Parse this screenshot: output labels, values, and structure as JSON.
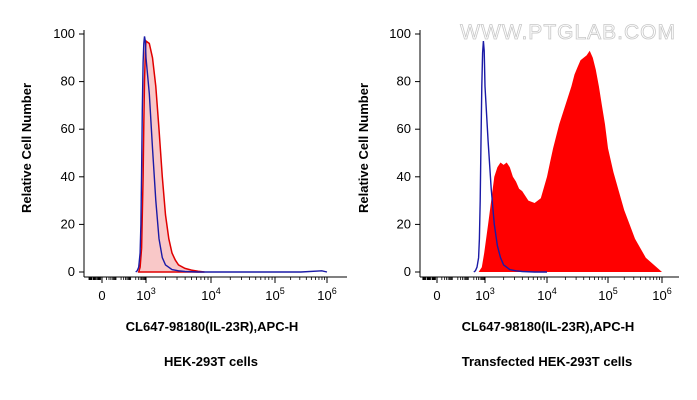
{
  "watermark": "WWW.PTGLAB.COM",
  "colors": {
    "control_line": "#1a1aa6",
    "sample_fill": "#ff0000",
    "sample_line": "#e00000",
    "faint_fill": "#f9c8c8",
    "axis": "#000000"
  },
  "chart_data": [
    {
      "type": "area",
      "title": "",
      "xlabel": "CL647-98180(IL-23R),APC-H",
      "ylabel": "Relative Cell Number",
      "caption": "HEK-293T cells",
      "xscale": "biexponential",
      "xlim": [
        -1,
        6.2
      ],
      "ylim": [
        0,
        100
      ],
      "x_ticks": [
        {
          "pos": 0,
          "base": "0",
          "exp": ""
        },
        {
          "pos": 3,
          "base": "10",
          "exp": "3"
        },
        {
          "pos": 4,
          "base": "10",
          "exp": "4"
        },
        {
          "pos": 5,
          "base": "10",
          "exp": "5"
        },
        {
          "pos": 6,
          "base": "10",
          "exp": "6"
        }
      ],
      "y_ticks": [
        0,
        20,
        40,
        60,
        80,
        100
      ],
      "grid": false,
      "series": [
        {
          "role": "sample",
          "style": "filled-light",
          "x": [
            2.5,
            2.6,
            2.7,
            2.8,
            2.85,
            2.9,
            2.95,
            3.0,
            3.05,
            3.1,
            3.15,
            3.2,
            3.25,
            3.3,
            3.35,
            3.4,
            3.45,
            3.5,
            3.6,
            3.7,
            3.8,
            3.9
          ],
          "values": [
            0,
            2,
            10,
            40,
            62,
            80,
            92,
            97,
            96,
            90,
            78,
            60,
            40,
            24,
            14,
            8,
            5,
            3,
            1.5,
            0.8,
            0.3,
            0
          ]
        },
        {
          "role": "control",
          "style": "line",
          "x": [
            2.3,
            2.4,
            2.5,
            2.6,
            2.65,
            2.7,
            2.75,
            2.8,
            2.85,
            2.9,
            2.95,
            3.0,
            3.05,
            3.1,
            3.15,
            3.2,
            3.25,
            3.3,
            3.4,
            3.5,
            3.6,
            3.8,
            4.0,
            4.5,
            5.0,
            5.5,
            5.9,
            6.0
          ],
          "values": [
            0,
            0.5,
            2,
            8,
            20,
            42,
            68,
            88,
            96,
            99,
            97,
            90,
            75,
            52,
            30,
            14,
            6,
            3,
            1,
            0.5,
            0.2,
            0,
            0,
            0,
            0,
            0,
            0.5,
            0
          ]
        }
      ]
    },
    {
      "type": "area",
      "title": "",
      "xlabel": "CL647-98180(IL-23R),APC-H",
      "ylabel": "Relative Cell Number",
      "caption": "Transfected HEK-293T cells",
      "xscale": "biexponential",
      "xlim": [
        -1,
        6.2
      ],
      "ylim": [
        0,
        100
      ],
      "x_ticks": [
        {
          "pos": 0,
          "base": "0",
          "exp": ""
        },
        {
          "pos": 3,
          "base": "10",
          "exp": "3"
        },
        {
          "pos": 4,
          "base": "10",
          "exp": "4"
        },
        {
          "pos": 5,
          "base": "10",
          "exp": "5"
        },
        {
          "pos": 6,
          "base": "10",
          "exp": "6"
        }
      ],
      "y_ticks": [
        0,
        20,
        40,
        60,
        80,
        100
      ],
      "grid": false,
      "series": [
        {
          "role": "sample",
          "style": "filled",
          "x": [
            2.6,
            2.8,
            2.95,
            3.05,
            3.1,
            3.15,
            3.2,
            3.25,
            3.3,
            3.35,
            3.4,
            3.45,
            3.5,
            3.55,
            3.6,
            3.7,
            3.8,
            3.9,
            4.0,
            4.05,
            4.1,
            4.2,
            4.3,
            4.4,
            4.45,
            4.5,
            4.55,
            4.6,
            4.65,
            4.7,
            4.75,
            4.8,
            4.85,
            4.9,
            4.95,
            5.0,
            5.1,
            5.2,
            5.3,
            5.4,
            5.5,
            5.6,
            5.7,
            5.8,
            5.9,
            6.0
          ],
          "values": [
            0,
            2,
            8,
            20,
            30,
            40,
            44,
            46,
            45,
            46,
            44,
            40,
            38,
            35,
            34,
            30,
            29,
            31,
            40,
            46,
            52,
            62,
            70,
            78,
            83,
            86,
            89,
            90,
            91,
            93,
            90,
            85,
            78,
            70,
            62,
            52,
            42,
            34,
            26,
            20,
            14,
            10,
            6,
            4,
            2,
            0
          ]
        },
        {
          "role": "control",
          "style": "line",
          "x": [
            2.3,
            2.4,
            2.5,
            2.6,
            2.65,
            2.7,
            2.75,
            2.8,
            2.85,
            2.9,
            2.95,
            3.0,
            3.05,
            3.1,
            3.15,
            3.2,
            3.25,
            3.3,
            3.35,
            3.4,
            3.5,
            3.6,
            3.8,
            4.0
          ],
          "values": [
            0,
            0.5,
            2,
            6,
            14,
            30,
            55,
            78,
            92,
            97,
            93,
            78,
            55,
            35,
            20,
            11,
            6,
            3,
            2,
            1,
            0.5,
            0.2,
            0,
            0
          ]
        }
      ]
    }
  ]
}
